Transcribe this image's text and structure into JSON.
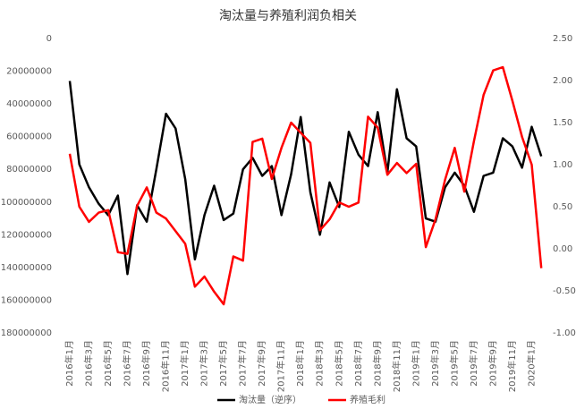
{
  "chart_data": {
    "type": "line",
    "title": "淘汰量与养殖利润负相关",
    "categories": [
      "2016年1月",
      null,
      "2016年3月",
      null,
      "2016年5月",
      null,
      "2016年7月",
      null,
      "2016年9月",
      null,
      "2016年11月",
      null,
      "2017年1月",
      null,
      "2017年3月",
      null,
      "2017年5月",
      null,
      "2017年7月",
      null,
      "2017年9月",
      null,
      "2017年11月",
      null,
      "2018年1月",
      null,
      "2018年3月",
      null,
      "2018年5月",
      null,
      "2018年7月",
      null,
      "2018年9月",
      null,
      "2018年11月",
      null,
      "2019年1月",
      null,
      "2019年3月",
      null,
      "2019年5月",
      null,
      "2019年7月",
      null,
      "2019年9月",
      null,
      "2019年11月",
      null,
      "2020年1月",
      null
    ],
    "series": [
      {
        "name": "淘汰量（逆序）",
        "color": "#000000",
        "axis": "y",
        "values": [
          26000000,
          77000000,
          91000000,
          101000000,
          108000000,
          96000000,
          144000000,
          102000000,
          112000000,
          80000000,
          46000000,
          55000000,
          86000000,
          135000000,
          108000000,
          90000000,
          111000000,
          107000000,
          80000000,
          73000000,
          84000000,
          78000000,
          108000000,
          83000000,
          48000000,
          94000000,
          120000000,
          88000000,
          103000000,
          57000000,
          71000000,
          78000000,
          45000000,
          82000000,
          31000000,
          61000000,
          66000000,
          110000000,
          112000000,
          91000000,
          82000000,
          90000000,
          106000000,
          84000000,
          82000000,
          61000000,
          66000000,
          79000000,
          54000000,
          72000000
        ]
      },
      {
        "name": "养殖毛利",
        "color": "#ff0000",
        "axis": "y2",
        "values": [
          1.13,
          0.5,
          0.32,
          0.43,
          0.46,
          -0.04,
          -0.06,
          0.51,
          0.73,
          0.43,
          0.36,
          0.21,
          0.06,
          -0.45,
          -0.33,
          -0.51,
          -0.66,
          -0.09,
          -0.14,
          1.27,
          1.31,
          0.83,
          1.2,
          1.5,
          1.38,
          1.26,
          0.22,
          0.35,
          0.55,
          0.5,
          0.55,
          1.57,
          1.44,
          0.88,
          1.02,
          0.9,
          1.01,
          0.02,
          0.35,
          0.82,
          1.2,
          0.68,
          1.28,
          1.83,
          2.12,
          2.16,
          1.76,
          1.33,
          1.0,
          -0.23
        ]
      }
    ],
    "ylim": [
      0,
      180000000
    ],
    "y_reversed": true,
    "yticks": [
      0,
      20000000,
      40000000,
      60000000,
      80000000,
      100000000,
      120000000,
      140000000,
      160000000,
      180000000
    ],
    "y2lim": [
      -1,
      2.5
    ],
    "y2ticks": [
      {
        "value": 2.5,
        "label": "2.50"
      },
      {
        "value": 2,
        "label": "2.00"
      },
      {
        "value": 1.5,
        "label": "1.50"
      },
      {
        "value": 1,
        "label": "1.00"
      },
      {
        "value": 0.5,
        "label": "0.50"
      },
      {
        "value": 0,
        "label": "0.00"
      },
      {
        "value": -0.5,
        "label": "-0.50"
      },
      {
        "value": -1,
        "label": "-1.00"
      }
    ],
    "legend": "bottom"
  }
}
